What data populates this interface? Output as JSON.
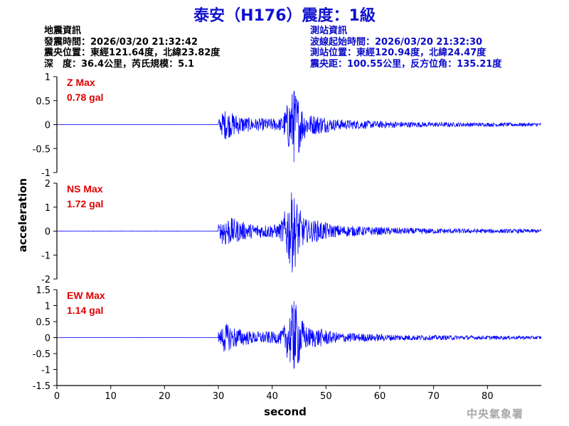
{
  "header": {
    "title": "泰安（H176）震度：1級"
  },
  "earthquake_info": {
    "heading": "地震資訊",
    "origin_time": "發震時間：2026/03/20 21:32:42",
    "epicenter": "震央位置：東經121.64度，北緯23.82度",
    "depth_magnitude": "深　度：36.4公里，芮氏規模：5.1"
  },
  "station_info": {
    "heading": "測站資訊",
    "wave_start": "波線起始時間：2026/03/20 21:32:30",
    "station_location": "測站位置：東經120.94度，北緯24.47度",
    "distance_azimuth": "震央距：100.55公里，反方位角：135.21度"
  },
  "footer": {
    "agency": "中央氣象署"
  },
  "colors": {
    "title": "#1010d0",
    "station_text": "#0b0bc9",
    "trace": "#0000ff",
    "max_label": "#e00000",
    "footer": "#a8a8a8"
  },
  "chart_data": {
    "type": "line",
    "xlabel": "second",
    "ylabel": "acceleration",
    "xlim": [
      0,
      90
    ],
    "x_ticks": [
      "0",
      "10",
      "20",
      "30",
      "40",
      "50",
      "60",
      "70",
      "80"
    ],
    "x_tick_values": [
      0,
      10,
      20,
      30,
      40,
      50,
      60,
      70,
      80
    ],
    "signal_onset": 30,
    "panels": [
      {
        "name": "Z",
        "max_label": "Z Max",
        "max_value": "0.78 gal",
        "ylim": [
          -1,
          1
        ],
        "y_ticks": [
          "1",
          "0.5",
          "0",
          "-0.5",
          "-1"
        ],
        "y_tick_values": [
          1,
          0.5,
          0,
          -0.5,
          -1
        ],
        "peak_positive": 0.7,
        "peak_negative": -0.78,
        "peak_time": 44
      },
      {
        "name": "NS",
        "max_label": "NS Max",
        "max_value": "1.72 gal",
        "ylim": [
          -2,
          2
        ],
        "y_ticks": [
          "2",
          "1",
          "0",
          "-1",
          "-2"
        ],
        "y_tick_values": [
          2,
          1,
          0,
          -1,
          -2
        ],
        "peak_positive": 1.3,
        "peak_negative": -1.72,
        "peak_time": 43.7
      },
      {
        "name": "EW",
        "max_label": "EW Max",
        "max_value": "1.14 gal",
        "ylim": [
          -1.5,
          1.5
        ],
        "y_ticks": [
          "1.5",
          "1",
          "0.5",
          "0",
          "-0.5",
          "-1",
          "-1.5"
        ],
        "y_tick_values": [
          1.5,
          1,
          0.5,
          0,
          -0.5,
          -1,
          -1.5
        ],
        "peak_positive": 1.14,
        "peak_negative": -0.95,
        "peak_time": 44
      }
    ]
  }
}
